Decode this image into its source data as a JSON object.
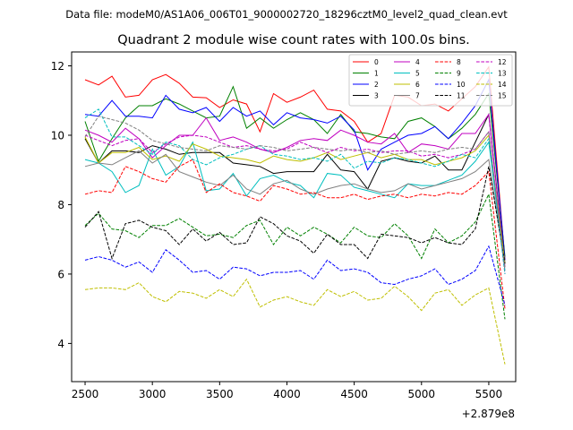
{
  "figure": {
    "suptitle": "Data file: modeM0/AS1A06_006T01_9000002720_18296cztM0_level2_quad_clean.evt"
  },
  "chart_data": {
    "type": "line",
    "title": "Quadrant 2 module wise count rates with 100.0s bins.",
    "xlabel": "",
    "ylabel": "",
    "x_offset_label": "+2.879e8",
    "xlim": [
      2400,
      5700
    ],
    "ylim": [
      2.9,
      12.4
    ],
    "grid": false,
    "legend_position": "top-right",
    "x_ticks": [
      2500,
      3000,
      3500,
      4000,
      4500,
      5000,
      5500
    ],
    "y_ticks": [
      4,
      6,
      8,
      10,
      12
    ],
    "x": [
      2500,
      2600,
      2700,
      2800,
      2900,
      3000,
      3100,
      3200,
      3300,
      3400,
      3500,
      3600,
      3700,
      3800,
      3900,
      4000,
      4100,
      4200,
      4300,
      4400,
      4500,
      4600,
      4700,
      4800,
      4900,
      5000,
      5100,
      5200,
      5300,
      5400,
      5500,
      5620
    ],
    "series": [
      {
        "name": "0",
        "color": "#ff0000",
        "dash": "solid",
        "values": [
          11.6,
          11.45,
          11.7,
          11.1,
          11.15,
          11.6,
          11.75,
          11.5,
          11.1,
          11.08,
          10.8,
          11.02,
          10.9,
          10.1,
          11.2,
          10.95,
          11.1,
          11.3,
          10.75,
          10.7,
          10.4,
          9.8,
          10.05,
          11.15,
          11.1,
          10.85,
          10.9,
          10.7,
          11.05,
          11.4,
          11.97,
          6.4
        ]
      },
      {
        "name": "1",
        "color": "#008000",
        "dash": "solid",
        "values": [
          10.4,
          9.25,
          9.9,
          10.5,
          10.85,
          10.85,
          11.05,
          10.9,
          10.7,
          10.5,
          10.55,
          11.4,
          10.2,
          10.5,
          10.2,
          10.45,
          10.65,
          10.45,
          10.05,
          10.6,
          10.1,
          10.05,
          9.95,
          9.9,
          10.4,
          10.5,
          10.25,
          9.9,
          10.2,
          10.6,
          11.2,
          6.5
        ]
      },
      {
        "name": "2",
        "color": "#0000ff",
        "dash": "solid",
        "values": [
          10.6,
          10.55,
          11.0,
          10.55,
          10.55,
          10.5,
          11.15,
          10.75,
          10.65,
          10.8,
          10.4,
          10.8,
          10.55,
          10.7,
          10.3,
          10.65,
          10.5,
          10.45,
          10.35,
          10.55,
          10.15,
          9.0,
          9.6,
          9.8,
          10.0,
          10.05,
          10.25,
          9.9,
          10.35,
          10.85,
          11.6,
          6.4
        ]
      },
      {
        "name": "3",
        "color": "#000000",
        "dash": "solid",
        "values": [
          9.9,
          9.2,
          9.55,
          9.55,
          9.5,
          9.7,
          9.6,
          9.45,
          9.5,
          9.5,
          9.5,
          9.2,
          9.15,
          9.1,
          8.9,
          8.95,
          8.95,
          8.95,
          9.45,
          9.0,
          8.95,
          8.45,
          9.25,
          9.35,
          9.25,
          9.2,
          9.4,
          9.0,
          9.0,
          9.8,
          10.6,
          6.3
        ]
      },
      {
        "name": "4",
        "color": "#c000c0",
        "dash": "solid",
        "values": [
          10.15,
          10.0,
          9.8,
          10.2,
          9.9,
          9.35,
          9.7,
          10.0,
          10.0,
          10.5,
          9.85,
          9.95,
          9.8,
          9.6,
          9.5,
          9.65,
          9.85,
          9.9,
          9.85,
          10.15,
          10.0,
          9.8,
          9.75,
          10.05,
          9.5,
          9.75,
          9.7,
          9.6,
          10.05,
          10.05,
          10.6,
          6.2
        ]
      },
      {
        "name": "5",
        "color": "#00bfbf",
        "dash": "solid",
        "values": [
          9.3,
          9.2,
          8.95,
          8.35,
          8.55,
          9.6,
          8.85,
          9.1,
          9.8,
          8.4,
          8.45,
          8.9,
          8.25,
          8.75,
          8.85,
          8.65,
          8.55,
          8.2,
          8.9,
          8.85,
          8.5,
          8.4,
          8.3,
          8.2,
          8.6,
          8.55,
          8.55,
          8.7,
          8.85,
          9.25,
          9.8,
          6.1
        ]
      },
      {
        "name": "6",
        "color": "#bfbf00",
        "dash": "solid",
        "values": [
          9.95,
          9.2,
          9.5,
          9.5,
          9.65,
          9.3,
          9.4,
          9.25,
          9.75,
          9.6,
          9.4,
          9.35,
          9.3,
          9.2,
          9.4,
          9.3,
          9.25,
          9.35,
          9.5,
          9.3,
          9.4,
          9.5,
          9.35,
          9.45,
          9.3,
          9.3,
          9.15,
          9.25,
          9.35,
          9.55,
          10.0,
          6.3
        ]
      },
      {
        "name": "7",
        "color": "#808080",
        "dash": "solid",
        "values": [
          9.1,
          9.2,
          9.15,
          9.35,
          9.55,
          9.2,
          9.45,
          8.95,
          8.8,
          8.65,
          8.55,
          8.85,
          8.45,
          8.3,
          8.6,
          8.7,
          8.45,
          8.3,
          8.45,
          8.55,
          8.6,
          8.45,
          8.35,
          8.4,
          8.6,
          8.45,
          8.55,
          8.65,
          8.75,
          8.95,
          9.3,
          6.2
        ]
      },
      {
        "name": "8",
        "color": "#ff0000",
        "dash": "dashed",
        "values": [
          8.3,
          8.4,
          8.35,
          9.1,
          8.95,
          8.75,
          8.65,
          9.1,
          9.3,
          8.35,
          8.6,
          8.35,
          8.25,
          8.1,
          8.55,
          8.45,
          8.3,
          8.35,
          8.2,
          8.2,
          8.3,
          8.15,
          8.25,
          8.3,
          8.2,
          8.3,
          8.25,
          8.35,
          8.3,
          8.55,
          8.95,
          5.0
        ]
      },
      {
        "name": "9",
        "color": "#008000",
        "dash": "dashed",
        "values": [
          7.4,
          7.75,
          7.3,
          7.25,
          7.05,
          7.4,
          7.4,
          7.6,
          7.35,
          7.1,
          7.15,
          7.05,
          7.4,
          7.55,
          6.85,
          7.35,
          7.1,
          7.35,
          7.15,
          6.9,
          7.35,
          7.1,
          7.05,
          7.45,
          7.1,
          6.45,
          7.3,
          6.9,
          7.1,
          7.5,
          8.3,
          4.7
        ]
      },
      {
        "name": "10",
        "color": "#0000ff",
        "dash": "dashed",
        "values": [
          6.4,
          6.5,
          6.4,
          6.2,
          6.35,
          6.05,
          6.7,
          6.4,
          6.05,
          6.1,
          5.85,
          6.2,
          6.15,
          5.95,
          6.05,
          6.05,
          6.1,
          5.85,
          6.4,
          6.1,
          6.15,
          6.05,
          5.75,
          5.7,
          5.85,
          5.95,
          6.15,
          5.7,
          5.85,
          6.1,
          6.8,
          5.1
        ]
      },
      {
        "name": "11",
        "color": "#000000",
        "dash": "dashed",
        "values": [
          7.35,
          7.8,
          6.45,
          7.45,
          7.55,
          7.35,
          7.25,
          6.85,
          7.3,
          6.95,
          7.2,
          6.85,
          6.9,
          7.65,
          7.45,
          7.1,
          6.95,
          6.6,
          7.15,
          6.85,
          6.85,
          6.45,
          7.15,
          7.1,
          7.05,
          6.9,
          7.05,
          6.9,
          6.85,
          7.3,
          9.1,
          6.3
        ]
      },
      {
        "name": "12",
        "color": "#c000c0",
        "dash": "dashed",
        "values": [
          10.0,
          9.85,
          9.7,
          9.85,
          9.9,
          9.5,
          9.75,
          9.95,
          10.0,
          9.95,
          9.8,
          9.65,
          9.7,
          9.6,
          9.55,
          9.6,
          9.8,
          9.65,
          9.5,
          9.65,
          9.55,
          9.6,
          9.5,
          9.55,
          9.55,
          9.4,
          9.45,
          9.35,
          9.45,
          9.6,
          10.1,
          6.0
        ]
      },
      {
        "name": "13",
        "color": "#00bfbf",
        "dash": "dashed",
        "values": [
          10.5,
          10.75,
          9.95,
          9.95,
          9.7,
          9.45,
          9.8,
          9.7,
          9.3,
          9.15,
          9.35,
          9.45,
          9.6,
          9.7,
          9.45,
          9.4,
          9.3,
          9.35,
          9.25,
          9.45,
          9.05,
          9.25,
          9.2,
          9.35,
          9.3,
          9.2,
          9.1,
          9.25,
          9.45,
          9.35,
          9.9,
          6.0
        ]
      },
      {
        "name": "14",
        "color": "#bfbf00",
        "dash": "dashed",
        "values": [
          5.55,
          5.6,
          5.6,
          5.55,
          5.75,
          5.35,
          5.2,
          5.5,
          5.45,
          5.3,
          5.55,
          5.35,
          5.85,
          5.05,
          5.25,
          5.35,
          5.2,
          5.1,
          5.55,
          5.35,
          5.5,
          5.25,
          5.3,
          5.65,
          5.35,
          4.95,
          5.45,
          5.55,
          5.1,
          5.4,
          5.6,
          3.4
        ]
      },
      {
        "name": "15",
        "color": "#808080",
        "dash": "dashed",
        "values": [
          9.95,
          10.55,
          10.45,
          10.35,
          10.15,
          9.85,
          9.75,
          9.65,
          9.6,
          9.55,
          9.7,
          9.65,
          9.6,
          9.7,
          9.65,
          9.55,
          9.6,
          9.65,
          9.6,
          9.55,
          9.6,
          9.5,
          9.55,
          9.45,
          9.5,
          9.55,
          9.5,
          9.6,
          9.65,
          9.6,
          10.1,
          6.1
        ]
      }
    ]
  }
}
